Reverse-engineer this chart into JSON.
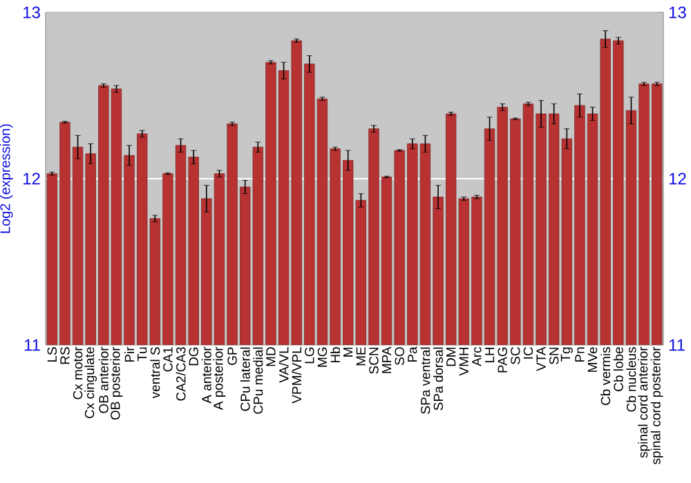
{
  "chart_data": {
    "type": "bar",
    "ylabel": "Log2 (expression)",
    "categories": [
      "LS",
      "RS",
      "Cx motor",
      "Cx cingulate",
      "OB anterior",
      "OB posterior",
      "Pir",
      "Tu",
      "ventral S",
      "CA1",
      "CA2/CA3",
      "DG",
      "A anterior",
      "A posterior",
      "GP",
      "CPu lateral",
      "CPu medial",
      "MD",
      "VA/VL",
      "VPM/VPL",
      "LG",
      "MG",
      "Hb",
      "M",
      "ME",
      "SCN",
      "MPA",
      "SO",
      "Pa",
      "SPa ventral",
      "SPa dorsal",
      "DM",
      "VMH",
      "Arc",
      "LH",
      "PAG",
      "SC",
      "IC",
      "VTA",
      "SN",
      "Tg",
      "Pn",
      "MVe",
      "Cb vermis",
      "Cb lobe",
      "Cb nucleus",
      "spinal cord anterior",
      "spinal cord posterior"
    ],
    "values": [
      12.03,
      12.34,
      12.19,
      12.15,
      12.56,
      12.54,
      12.14,
      12.27,
      11.76,
      12.03,
      12.2,
      12.13,
      11.88,
      12.03,
      12.33,
      11.95,
      12.19,
      12.7,
      12.65,
      12.83,
      12.69,
      12.48,
      12.18,
      12.11,
      11.87,
      12.3,
      12.01,
      12.17,
      12.21,
      12.21,
      11.89,
      12.39,
      11.88,
      11.89,
      12.3,
      12.43,
      12.36,
      12.45,
      12.39,
      12.39,
      12.24,
      12.44,
      12.39,
      12.84,
      12.83,
      12.41,
      12.57,
      12.57
    ],
    "errors": [
      0.01,
      0.005,
      0.07,
      0.06,
      0.01,
      0.02,
      0.06,
      0.02,
      0.02,
      0.005,
      0.04,
      0.04,
      0.08,
      0.02,
      0.01,
      0.04,
      0.03,
      0.01,
      0.05,
      0.01,
      0.05,
      0.01,
      0.01,
      0.06,
      0.04,
      0.02,
      0.005,
      0.005,
      0.03,
      0.05,
      0.07,
      0.01,
      0.01,
      0.01,
      0.07,
      0.02,
      0.005,
      0.01,
      0.08,
      0.06,
      0.06,
      0.07,
      0.04,
      0.05,
      0.02,
      0.08,
      0.01,
      0.01
    ],
    "color": "#b83232",
    "ylim": [
      11,
      13
    ],
    "yticks": [
      11,
      12,
      13
    ],
    "y2lim": [
      11,
      13
    ],
    "y2ticks": [
      11,
      12,
      13
    ],
    "grid": "y"
  }
}
